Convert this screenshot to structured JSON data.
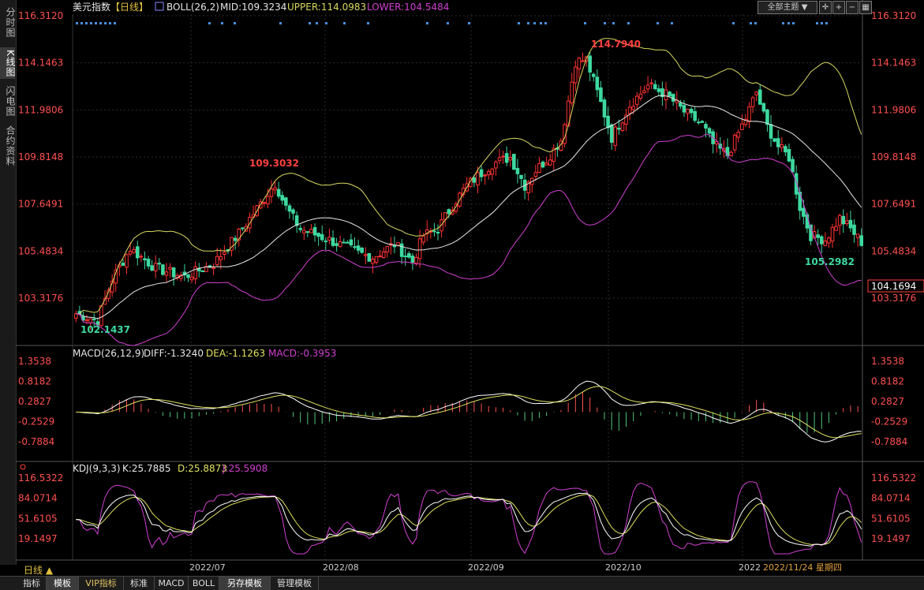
{
  "sidebar": {
    "tabs": [
      {
        "label": "分时图",
        "active": false
      },
      {
        "label": "K线图",
        "active": true
      },
      {
        "label": "闪电图",
        "active": false
      },
      {
        "label": "合约资料",
        "active": false
      }
    ]
  },
  "header": {
    "name": "美元指数",
    "period": "【日线】",
    "boll_label": "BOLL(26,2)",
    "mid": "MID:109.3234",
    "upper": "UPPER:114.0983",
    "lower": "LOWER:104.5484",
    "theme_select": "全部主题"
  },
  "colors": {
    "up": "#ff3232",
    "down": "#3dd9a0",
    "upper": "#d8d860",
    "mid": "#e8e8e8",
    "lower": "#d040d0",
    "price": "#ff4040",
    "dea": "#e0e060",
    "macd_hist_up": "#ff5050",
    "macd_hist_down": "#50c878"
  },
  "price_axis": {
    "labels": [
      "116.3120",
      "114.1463",
      "111.9806",
      "109.8148",
      "107.6491",
      "105.4834",
      "103.3176"
    ],
    "values": [
      116.312,
      114.1463,
      111.9806,
      109.8148,
      107.6491,
      105.4834,
      103.3176
    ],
    "current": "104.1694"
  },
  "annotations": {
    "high1": "109.3032",
    "high2": "114.7940",
    "low1": "102.1437",
    "low2": "105.2982"
  },
  "macd": {
    "title": "MACD(26,12,9)",
    "diff": "DIFF:-1.3240",
    "dea": "DEA:-1.1263",
    "macd": "MACD:-0.3953",
    "labels": [
      "1.3538",
      "0.8182",
      "0.2827",
      "-0.2529",
      "-0.7884"
    ],
    "values": [
      1.3538,
      0.8182,
      0.2827,
      -0.2529,
      -0.7884
    ]
  },
  "kdj": {
    "title": "KDJ(9,3,3)",
    "k": "K:25.7885",
    "d": "D:25.8873",
    "j": "J:25.5908",
    "labels": [
      "116.5322",
      "84.0714",
      "51.6105",
      "19.1497"
    ],
    "values": [
      116.5322,
      84.0714,
      51.6105,
      19.1497
    ]
  },
  "xaxis": {
    "labels": [
      "2022/07",
      "2022/08",
      "2022/09",
      "2022/10",
      "2022"
    ],
    "date_readout": "2022/11/24 星期四"
  },
  "daybutton": "日线 ▲",
  "bottom_tabs": [
    {
      "label": "指标",
      "active": false,
      "vip": false
    },
    {
      "label": "模板",
      "active": true,
      "vip": false
    },
    {
      "label": "VIP指标",
      "active": false,
      "vip": true
    },
    {
      "label": "标准",
      "active": false,
      "vip": false
    },
    {
      "label": "MACD",
      "active": false,
      "vip": false
    },
    {
      "label": "BOLL",
      "active": false,
      "vip": false
    },
    {
      "label": "另存模板",
      "active": true,
      "vip": false
    },
    {
      "label": "管理模板",
      "active": false,
      "vip": false
    }
  ]
}
